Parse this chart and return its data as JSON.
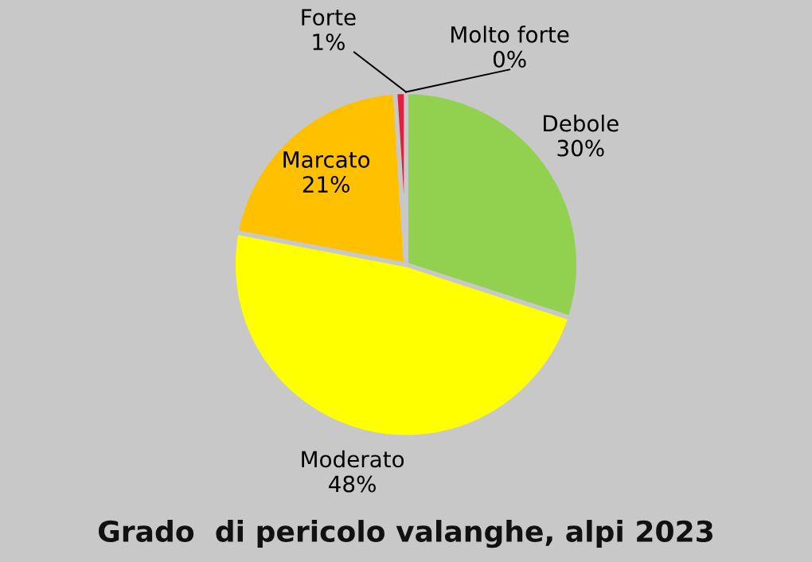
{
  "chart_data": {
    "type": "pie",
    "title": "Grado  di pericolo valanghe, alpi 2023",
    "categories": [
      "Debole",
      "Moderato",
      "Marcato",
      "Forte",
      "Molto forte"
    ],
    "values": [
      30,
      48,
      21,
      1,
      0
    ],
    "value_labels": [
      "30%",
      "48%",
      "21%",
      "1%",
      "0%"
    ],
    "colors": [
      "#92d050",
      "#ffff00",
      "#ffc000",
      "#e0203c",
      "#4f81bd"
    ],
    "legend": false
  }
}
